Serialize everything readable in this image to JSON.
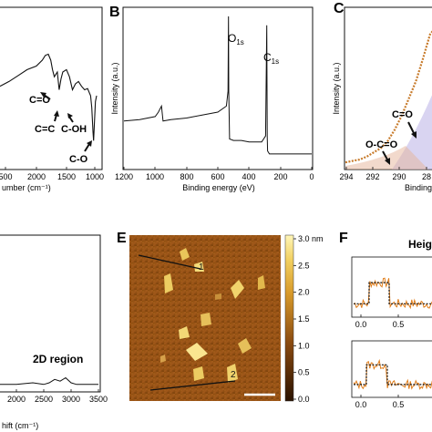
{
  "panels": {
    "A": {
      "label": "",
      "xlabel": "umber (cm⁻¹)",
      "annotations": [
        "C=O",
        "C=C",
        "C-OH",
        "C-O"
      ]
    },
    "B": {
      "label": "B",
      "xlabel": "Binding energy (eV)",
      "ylabel": "Intensity (a.u.)",
      "peak_o": "O",
      "peak_o_sub": "1s",
      "peak_c": "C",
      "peak_c_sub": "1s"
    },
    "C": {
      "label": "C",
      "xlabel": "Binding",
      "ylabel": "Intensity (a.u.)",
      "annotations": [
        "C=O",
        "O-C=O"
      ]
    },
    "D": {
      "label": "",
      "xlabel": "hift (cm⁻¹)",
      "region_label": "2D region"
    },
    "E": {
      "label": "E",
      "colorbar_unit": "3.0 nm",
      "profile_1": "1",
      "profile_2": "2"
    },
    "F": {
      "label": "F",
      "title": "Heig"
    }
  },
  "colors": {
    "line": "#111111",
    "xps_peak": "#9a8fd6",
    "fit": "#c77a2a",
    "afm_low": "#3a1a00",
    "afm_high": "#fff3a8",
    "profile": "#e07d1a"
  },
  "chart_data": [
    {
      "type": "line",
      "panel": "A",
      "xlabel": "umber (cm⁻¹)",
      "xticks": [
        "500",
        "2000",
        "1500",
        "1000"
      ],
      "xlim": [
        2600,
        1000
      ],
      "x": [
        2600,
        2450,
        2300,
        2150,
        2000,
        1900,
        1850,
        1800,
        1760,
        1730,
        1700,
        1650,
        1620,
        1590,
        1560,
        1500,
        1450,
        1400,
        1350,
        1300,
        1250,
        1200,
        1150,
        1100,
        1080,
        1060,
        1050,
        1040,
        1020,
        1000
      ],
      "y": [
        0.58,
        0.62,
        0.67,
        0.72,
        0.75,
        0.8,
        0.84,
        0.85,
        0.8,
        0.72,
        0.66,
        0.7,
        0.55,
        0.64,
        0.7,
        0.72,
        0.66,
        0.55,
        0.6,
        0.62,
        0.58,
        0.55,
        0.56,
        0.5,
        0.4,
        0.2,
        0.12,
        0.22,
        0.45,
        0.5
      ]
    },
    {
      "type": "line",
      "panel": "B",
      "xlabel": "Binding energy (eV)",
      "ylabel": "Intensity (a.u.)",
      "xticks": [
        "1200",
        "1000",
        "800",
        "600",
        "400",
        "200",
        "0"
      ],
      "xlim": [
        1200,
        0
      ],
      "x": [
        1200,
        1100,
        1000,
        980,
        960,
        950,
        900,
        800,
        700,
        600,
        545,
        535,
        532,
        530,
        525,
        500,
        450,
        400,
        320,
        295,
        287,
        284,
        282,
        270,
        200,
        100,
        0
      ],
      "y": [
        0.3,
        0.31,
        0.33,
        0.36,
        0.4,
        0.3,
        0.31,
        0.32,
        0.34,
        0.36,
        0.4,
        0.5,
        1.0,
        0.5,
        0.18,
        0.17,
        0.17,
        0.16,
        0.16,
        0.2,
        0.94,
        0.2,
        0.1,
        0.08,
        0.08,
        0.08,
        0.08
      ]
    },
    {
      "type": "line",
      "panel": "C",
      "xlabel": "Binding",
      "ylabel": "Intensity (a.u.)",
      "xticks": [
        "294",
        "292",
        "290",
        "28"
      ],
      "xlim": [
        294,
        287.6
      ],
      "x": [
        294,
        293.5,
        293,
        292.5,
        292,
        291.5,
        291,
        290.5,
        290,
        289.5,
        289,
        288.5,
        288,
        287.6
      ],
      "y": [
        0.05,
        0.06,
        0.07,
        0.09,
        0.12,
        0.15,
        0.2,
        0.28,
        0.38,
        0.5,
        0.62,
        0.78,
        0.95,
        1.0
      ]
    },
    {
      "type": "line",
      "panel": "D",
      "xlabel": "hift (cm⁻¹)",
      "xticks": [
        "2000",
        "2500",
        "3000",
        "3500"
      ],
      "xlim": [
        1700,
        3500
      ],
      "x": [
        1700,
        2000,
        2300,
        2500,
        2600,
        2700,
        2800,
        2900,
        3000,
        3100,
        3300,
        3500
      ],
      "y": [
        0.1,
        0.1,
        0.11,
        0.1,
        0.11,
        0.13,
        0.12,
        0.14,
        0.11,
        0.1,
        0.1,
        0.1
      ]
    },
    {
      "type": "heatmap",
      "panel": "E",
      "colorbar_ticks": [
        "3.0 nm",
        "2.5",
        "2.0",
        "1.5",
        "1.0",
        "0.5",
        "0.0"
      ],
      "zlim": [
        0,
        3.0
      ]
    },
    {
      "type": "line",
      "panel": "F",
      "title": "Heig",
      "xticks_top": [
        "0.0",
        "0.5"
      ],
      "xticks_bottom": [
        "0.0",
        "0.5"
      ]
    }
  ]
}
